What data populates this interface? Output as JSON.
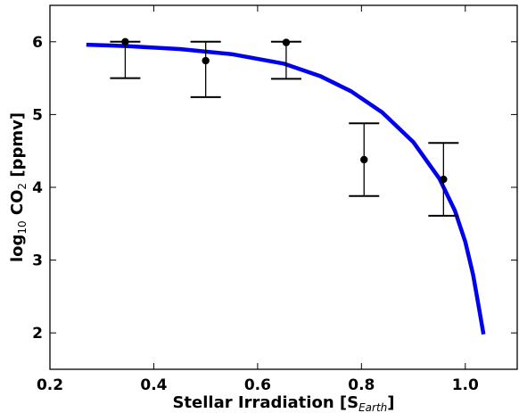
{
  "chart_data": {
    "type": "scatter",
    "title": "",
    "xlabel": "Stellar Irradiation [S",
    "xlabel_sub": "Earth",
    "xlabel_end": "]",
    "ylabel_pre": "log",
    "ylabel_pre_sub": "10",
    "ylabel_mid": " CO",
    "ylabel_mid_sub": "2",
    "ylabel_end": " [ppmv]",
    "xlim": [
      0.2,
      1.1
    ],
    "ylim": [
      1.5,
      6.5
    ],
    "xticks": [
      0.2,
      0.4,
      0.6,
      0.8,
      1.0
    ],
    "xtick_labels": [
      "0.2",
      "0.4",
      "0.6",
      "0.8",
      "1.0"
    ],
    "yticks": [
      2,
      3,
      4,
      5,
      6
    ],
    "ytick_labels": [
      "2",
      "3",
      "4",
      "5",
      "6"
    ],
    "grid": false,
    "points": [
      {
        "x": 0.345,
        "y": 6.0,
        "ylow": 5.5,
        "yhigh": 6.0
      },
      {
        "x": 0.5,
        "y": 5.74,
        "ylow": 5.24,
        "yhigh": 6.0
      },
      {
        "x": 0.655,
        "y": 5.99,
        "ylow": 5.49,
        "yhigh": 6.0
      },
      {
        "x": 0.805,
        "y": 4.38,
        "ylow": 3.88,
        "yhigh": 4.88
      },
      {
        "x": 0.958,
        "y": 4.11,
        "ylow": 3.61,
        "yhigh": 4.61
      }
    ],
    "curve": {
      "color": "#0000ee",
      "x": [
        0.27,
        0.35,
        0.45,
        0.55,
        0.65,
        0.72,
        0.78,
        0.84,
        0.9,
        0.95,
        0.98,
        1.0,
        1.015,
        1.025,
        1.035
      ],
      "y": [
        5.96,
        5.94,
        5.9,
        5.83,
        5.7,
        5.53,
        5.32,
        5.03,
        4.62,
        4.12,
        3.68,
        3.25,
        2.8,
        2.4,
        1.98
      ]
    }
  }
}
